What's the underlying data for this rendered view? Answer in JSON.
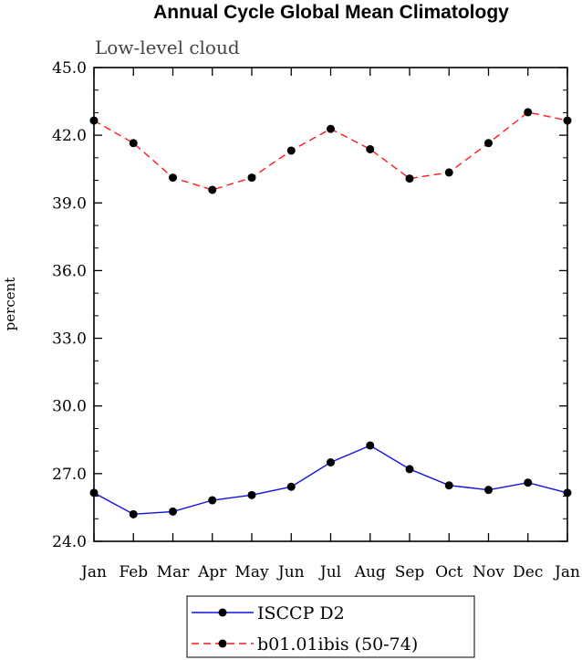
{
  "chart_data": {
    "type": "line",
    "title": "Annual Cycle Global Mean Climatology",
    "subtitle": "Low-level cloud",
    "xlabel": "",
    "ylabel": "percent",
    "categories": [
      "Jan",
      "Feb",
      "Mar",
      "Apr",
      "May",
      "Jun",
      "Jul",
      "Aug",
      "Sep",
      "Oct",
      "Nov",
      "Dec",
      "Jan"
    ],
    "ylim": [
      24.0,
      45.0
    ],
    "yticks": [
      "24.0",
      "27.0",
      "30.0",
      "33.0",
      "36.0",
      "39.0",
      "42.0",
      "45.0"
    ],
    "legend_position": "bottom-center",
    "series": [
      {
        "name": "ISCCP D2",
        "color": "#1010e0",
        "dash": "solid",
        "values": [
          26.15,
          25.2,
          25.32,
          25.82,
          26.05,
          26.42,
          27.5,
          28.25,
          27.2,
          26.48,
          26.28,
          26.6,
          26.15
        ]
      },
      {
        "name": "b01.01ibis (50-74)",
        "color": "#ff1a1a",
        "dash": "dashed",
        "values": [
          42.65,
          41.65,
          40.12,
          39.58,
          40.12,
          41.32,
          42.28,
          41.38,
          40.08,
          40.35,
          41.65,
          43.02,
          42.65
        ]
      }
    ]
  }
}
